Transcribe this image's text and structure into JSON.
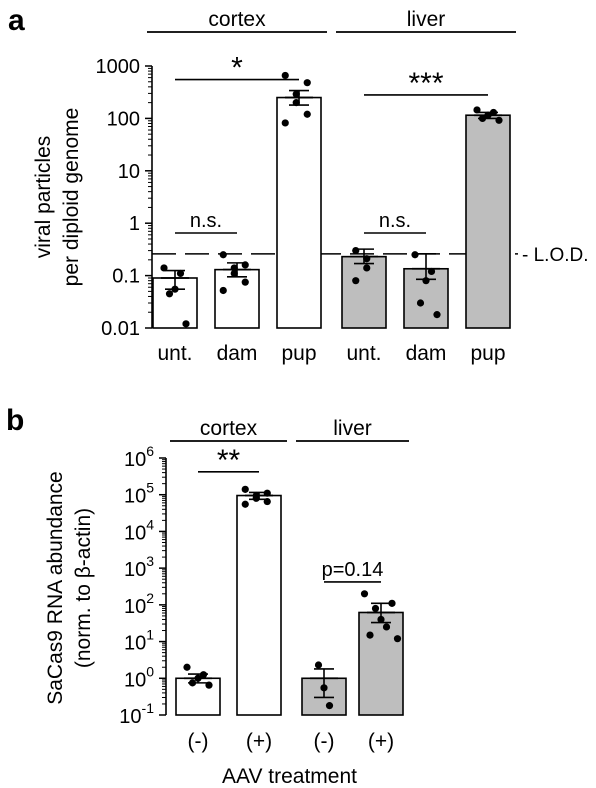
{
  "chart_data": [
    {
      "panel": "a",
      "type": "bar",
      "scale": "log",
      "ylabel": [
        "viral particles",
        "per diploid genome"
      ],
      "ylim": [
        0.01,
        1000
      ],
      "yticks": [
        {
          "value": 0.01,
          "label": "0.01"
        },
        {
          "value": 0.1,
          "label": "0.1"
        },
        {
          "value": 1,
          "label": "1"
        },
        {
          "value": 10,
          "label": "10"
        },
        {
          "value": 100,
          "label": "100"
        },
        {
          "value": 1000,
          "label": "1000"
        }
      ],
      "groups": [
        {
          "label": "cortex",
          "from": 0,
          "to": 2
        },
        {
          "label": "liver",
          "from": 3,
          "to": 5
        }
      ],
      "categories": [
        "unt.",
        "dam",
        "pup",
        "unt.",
        "dam",
        "pup"
      ],
      "bar_colors": [
        "#ffffff",
        "#ffffff",
        "#ffffff",
        "#bebebe",
        "#bebebe",
        "#bebebe"
      ],
      "means": [
        0.09,
        0.13,
        250,
        0.23,
        0.135,
        115
      ],
      "sem_low": [
        0.055,
        0.095,
        180,
        0.17,
        0.085,
        100
      ],
      "sem_high": [
        0.125,
        0.175,
        340,
        0.32,
        0.26,
        130
      ],
      "points": [
        [
          0.14,
          0.11,
          0.055,
          0.045,
          0.012
        ],
        [
          0.25,
          0.16,
          0.14,
          0.11,
          0.075,
          0.052
        ],
        [
          660,
          480,
          290,
          200,
          120,
          82
        ],
        [
          0.3,
          0.21,
          0.14,
          0.08
        ],
        [
          0.25,
          0.12,
          0.08,
          0.03,
          0.018
        ],
        [
          145,
          130,
          115,
          100,
          92
        ]
      ],
      "reference_line": {
        "value": 0.26,
        "label": "- L.O.D.",
        "style": "dashed"
      },
      "significance": [
        {
          "from": 0,
          "to": 2,
          "label": "*",
          "y": 550
        },
        {
          "from": 0,
          "to": 1,
          "label": "n.s.",
          "y": 0.65
        },
        {
          "from": 3,
          "to": 5,
          "label": "***",
          "y": 280
        },
        {
          "from": 3,
          "to": 4,
          "label": "n.s.",
          "y": 0.65
        }
      ]
    },
    {
      "panel": "b",
      "type": "bar",
      "scale": "log",
      "ylabel": [
        "SaCas9 RNA abundance",
        "(norm. to β-actin)"
      ],
      "xlabel": "AAV treatment",
      "ylim": [
        0.1,
        1000000
      ],
      "yticks": [
        {
          "value": 0.1,
          "base": "10",
          "exp": "-1"
        },
        {
          "value": 1,
          "base": "10",
          "exp": "0"
        },
        {
          "value": 10,
          "base": "10",
          "exp": "1"
        },
        {
          "value": 100,
          "base": "10",
          "exp": "2"
        },
        {
          "value": 1000,
          "base": "10",
          "exp": "3"
        },
        {
          "value": 10000,
          "base": "10",
          "exp": "4"
        },
        {
          "value": 100000,
          "base": "10",
          "exp": "5"
        },
        {
          "value": 1000000,
          "base": "10",
          "exp": "6"
        }
      ],
      "groups": [
        {
          "label": "cortex",
          "from": 0,
          "to": 1
        },
        {
          "label": "liver",
          "from": 2,
          "to": 3
        }
      ],
      "categories": [
        "(-)",
        "(+)",
        "(-)",
        "(+)"
      ],
      "bar_colors": [
        "#ffffff",
        "#ffffff",
        "#bebebe",
        "#bebebe"
      ],
      "means": [
        1.0,
        95000,
        1.0,
        62
      ],
      "sem_low": [
        0.75,
        75000,
        0.3,
        33
      ],
      "sem_high": [
        1.3,
        115000,
        1.8,
        110
      ],
      "points": [
        [
          2.0,
          1.25,
          1.0,
          0.75,
          0.65
        ],
        [
          140000,
          110000,
          95000,
          80000,
          65000,
          55000
        ],
        [
          2.3,
          0.55,
          0.18
        ],
        [
          200,
          110,
          80,
          40,
          25,
          15,
          12
        ]
      ],
      "significance": [
        {
          "from": 0,
          "to": 1,
          "label": "**",
          "y": 420000
        },
        {
          "from": 2,
          "to": 3,
          "label": "p=0.14",
          "y": 420
        }
      ]
    }
  ],
  "panel_labels": [
    "a",
    "b"
  ]
}
